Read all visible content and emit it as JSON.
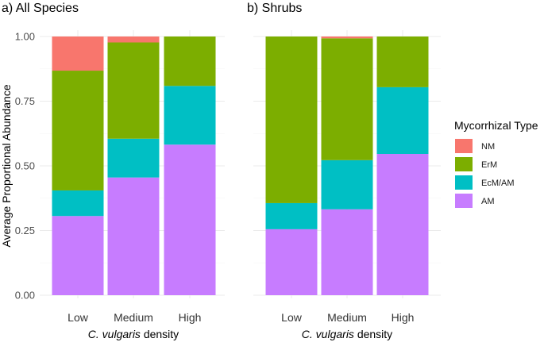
{
  "chart_data": [
    {
      "type": "bar",
      "stacked": true,
      "title": "a) All Species",
      "ylabel": "Average Proportional Abundance",
      "xlabel": {
        "italic": "C. vulgaris",
        "plain": " density"
      },
      "categories": [
        "Low",
        "Medium",
        "High"
      ],
      "ylim": [
        0,
        1
      ],
      "yticks": [
        0,
        0.25,
        0.5,
        0.75,
        1
      ],
      "ytick_labels": [
        "0.00",
        "0.25",
        "0.50",
        "0.75",
        "1.00"
      ],
      "series": [
        {
          "name": "AM",
          "values": [
            0.306,
            0.455,
            0.582
          ]
        },
        {
          "name": "EcM/AM",
          "values": [
            0.099,
            0.15,
            0.227
          ]
        },
        {
          "name": "ErM",
          "values": [
            0.463,
            0.372,
            0.191
          ]
        },
        {
          "name": "NM",
          "values": [
            0.132,
            0.023,
            0.0
          ]
        }
      ]
    },
    {
      "type": "bar",
      "stacked": true,
      "title": "b) Shrubs",
      "xlabel": {
        "italic": "C. vulgaris",
        "plain": " density"
      },
      "categories": [
        "Low",
        "Medium",
        "High"
      ],
      "ylim": [
        0,
        1
      ],
      "series": [
        {
          "name": "AM",
          "values": [
            0.255,
            0.332,
            0.546
          ]
        },
        {
          "name": "EcM/AM",
          "values": [
            0.101,
            0.19,
            0.258
          ]
        },
        {
          "name": "ErM",
          "values": [
            0.644,
            0.471,
            0.196
          ]
        },
        {
          "name": "NM",
          "values": [
            0.0,
            0.007,
            0.0
          ]
        }
      ]
    }
  ],
  "legend": {
    "title": "Mycorrhizal Type",
    "items": [
      {
        "name": "NM",
        "color": "#F8766D"
      },
      {
        "name": "ErM",
        "color": "#7CAE00"
      },
      {
        "name": "EcM/AM",
        "color": "#00BFC4"
      },
      {
        "name": "AM",
        "color": "#C77CFF"
      }
    ]
  }
}
